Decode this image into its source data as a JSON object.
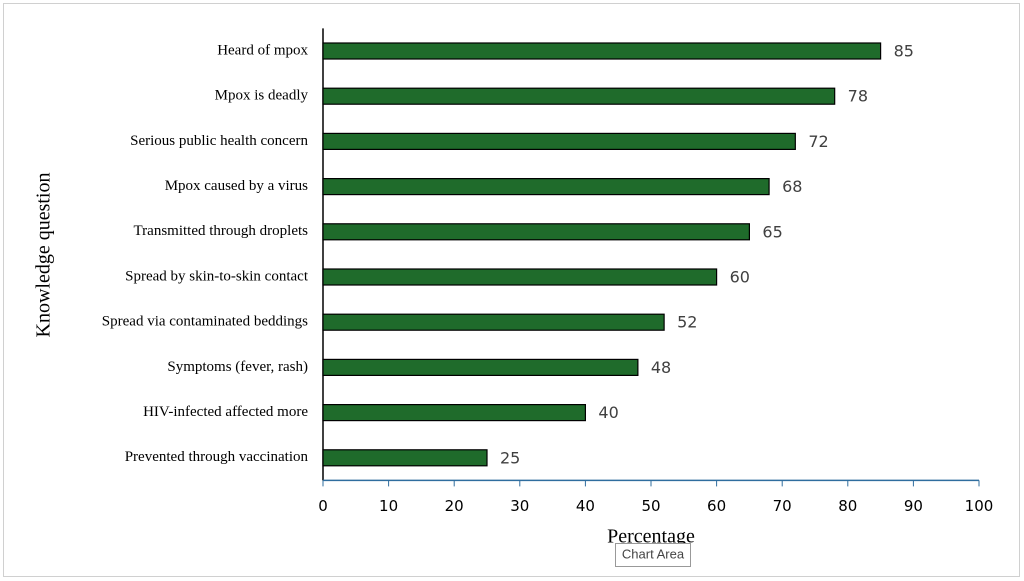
{
  "chart_data": {
    "type": "hbar",
    "categories": [
      "Heard of mpox",
      "Mpox is deadly",
      "Serious public health concern",
      "Mpox caused by a virus",
      "Transmitted through droplets",
      "Spread by skin-to-skin contact",
      "Spread via contaminated beddings",
      "Symptoms (fever, rash)",
      "HIV-infected affected more",
      "Prevented through vaccination"
    ],
    "values": [
      85,
      78,
      72,
      68,
      65,
      60,
      52,
      48,
      40,
      25
    ],
    "color": "#1f6b2b",
    "xlim": [
      0,
      100
    ],
    "xticks": [
      0,
      10,
      20,
      30,
      40,
      50,
      60,
      70,
      80,
      90,
      100
    ],
    "xlabel": "Percentage",
    "ylabel": "Knowledge question",
    "tooltip": "Chart Area"
  }
}
